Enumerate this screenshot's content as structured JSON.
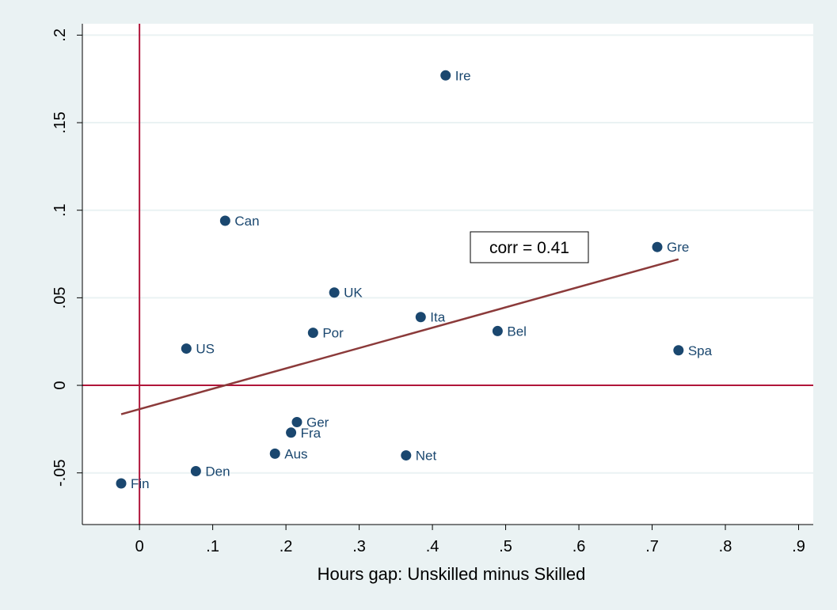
{
  "chart_data": {
    "type": "scatter",
    "title": "",
    "xlabel": "Hours gap: Unskilled minus Skilled",
    "ylabel": "",
    "xlim": [
      -0.078,
      0.92
    ],
    "ylim": [
      -0.0795,
      0.2065
    ],
    "x_ticks": [
      0,
      0.1,
      0.2,
      0.3,
      0.4,
      0.5,
      0.6,
      0.7,
      0.8,
      0.9
    ],
    "x_tick_labels": [
      "0",
      ".1",
      ".2",
      ".3",
      ".4",
      ".5",
      ".6",
      ".7",
      ".8",
      ".9"
    ],
    "y_ticks": [
      -0.05,
      0,
      0.05,
      0.1,
      0.15,
      0.2
    ],
    "y_tick_labels": [
      "-.05",
      "0",
      ".05",
      ".1",
      ".15",
      ".2"
    ],
    "grid": "horizontal",
    "reference_lines": {
      "x": 0,
      "y": 0,
      "color": "#b0153a"
    },
    "points": [
      {
        "label": "Ire",
        "x": 0.418,
        "y": 0.177
      },
      {
        "label": "Can",
        "x": 0.117,
        "y": 0.094
      },
      {
        "label": "Gre",
        "x": 0.707,
        "y": 0.079
      },
      {
        "label": "UK",
        "x": 0.266,
        "y": 0.053
      },
      {
        "label": "Ita",
        "x": 0.384,
        "y": 0.039
      },
      {
        "label": "Por",
        "x": 0.237,
        "y": 0.03
      },
      {
        "label": "Bel",
        "x": 0.489,
        "y": 0.031
      },
      {
        "label": "US",
        "x": 0.064,
        "y": 0.021
      },
      {
        "label": "Spa",
        "x": 0.736,
        "y": 0.02
      },
      {
        "label": "Ger",
        "x": 0.215,
        "y": -0.021
      },
      {
        "label": "Fra",
        "x": 0.207,
        "y": -0.027
      },
      {
        "label": "Aus",
        "x": 0.185,
        "y": -0.039
      },
      {
        "label": "Net",
        "x": 0.364,
        "y": -0.04
      },
      {
        "label": "Den",
        "x": 0.077,
        "y": -0.049
      },
      {
        "label": "Fin",
        "x": -0.025,
        "y": -0.056
      }
    ],
    "fit_line": {
      "x": [
        -0.025,
        0.736
      ],
      "y": [
        -0.0165,
        0.072
      ],
      "color": "#8b3a3a"
    },
    "annotation": {
      "text": "corr = 0.41"
    },
    "colors": {
      "marker": "#1a476f",
      "grid": "#eaf2f3",
      "background": "#eaf2f3",
      "plot_background": "#ffffff"
    }
  }
}
